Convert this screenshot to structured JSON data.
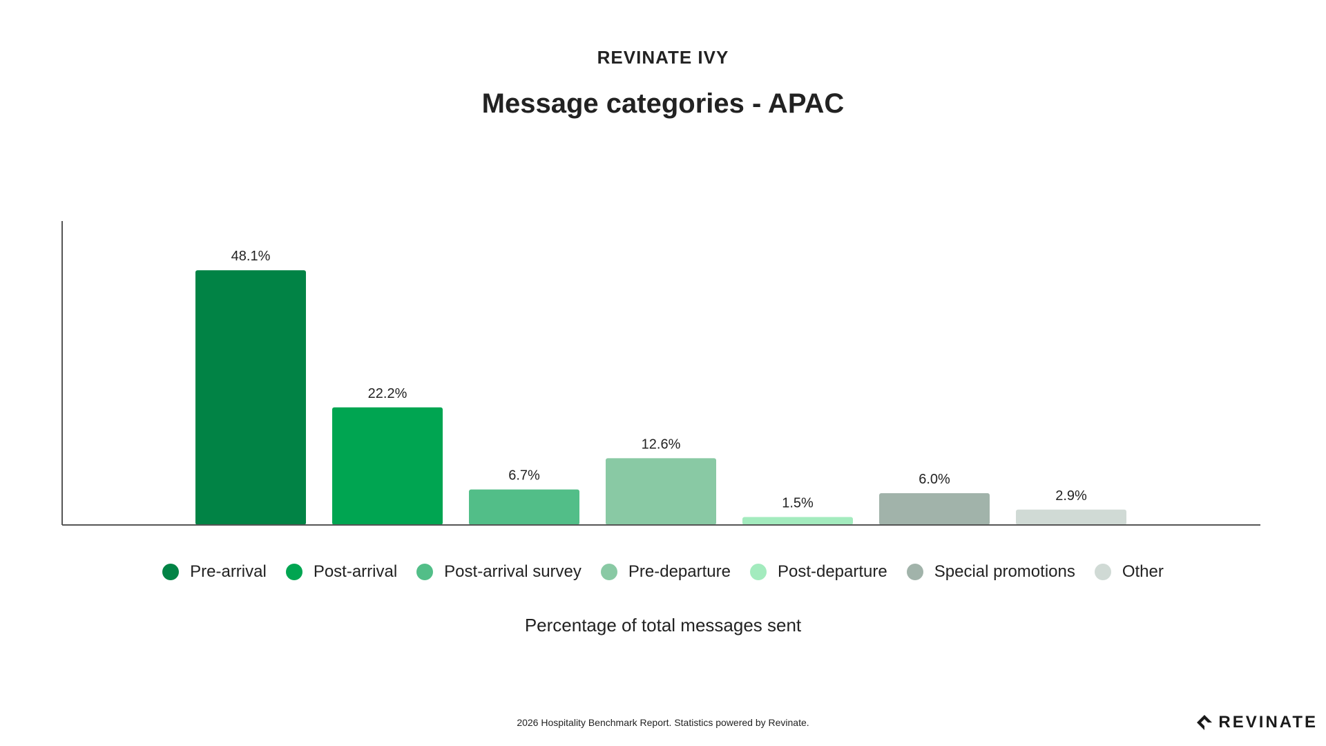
{
  "header": {
    "eyebrow": "REVINATE IVY",
    "title": "Message categories - APAC"
  },
  "chart_data": {
    "type": "bar",
    "title": "Message categories - APAC",
    "xlabel": "Percentage of total messages sent",
    "ylabel": "",
    "ylim": [
      0,
      60
    ],
    "grid": false,
    "legend_position": "bottom",
    "categories": [
      "Pre-arrival",
      "Post-arrival",
      "Post-arrival survey",
      "Pre-departure",
      "Post-departure",
      "Special promotions",
      "Other"
    ],
    "values": [
      48.1,
      22.2,
      6.7,
      12.6,
      1.5,
      6.0,
      2.9
    ],
    "value_labels": [
      "48.1%",
      "22.2%",
      "6.7%",
      "12.6%",
      "1.5%",
      "6.0%",
      "2.9%"
    ],
    "colors": [
      "#018345",
      "#00a551",
      "#52be88",
      "#89c9a4",
      "#a3ebbe",
      "#a1b3aa",
      "#d0dad5"
    ]
  },
  "footer": {
    "note": "2026 Hospitality Benchmark Report. Statistics powered by Revinate.",
    "brand": "REVINATE",
    "brand_icon": "revinate-logo-icon"
  }
}
